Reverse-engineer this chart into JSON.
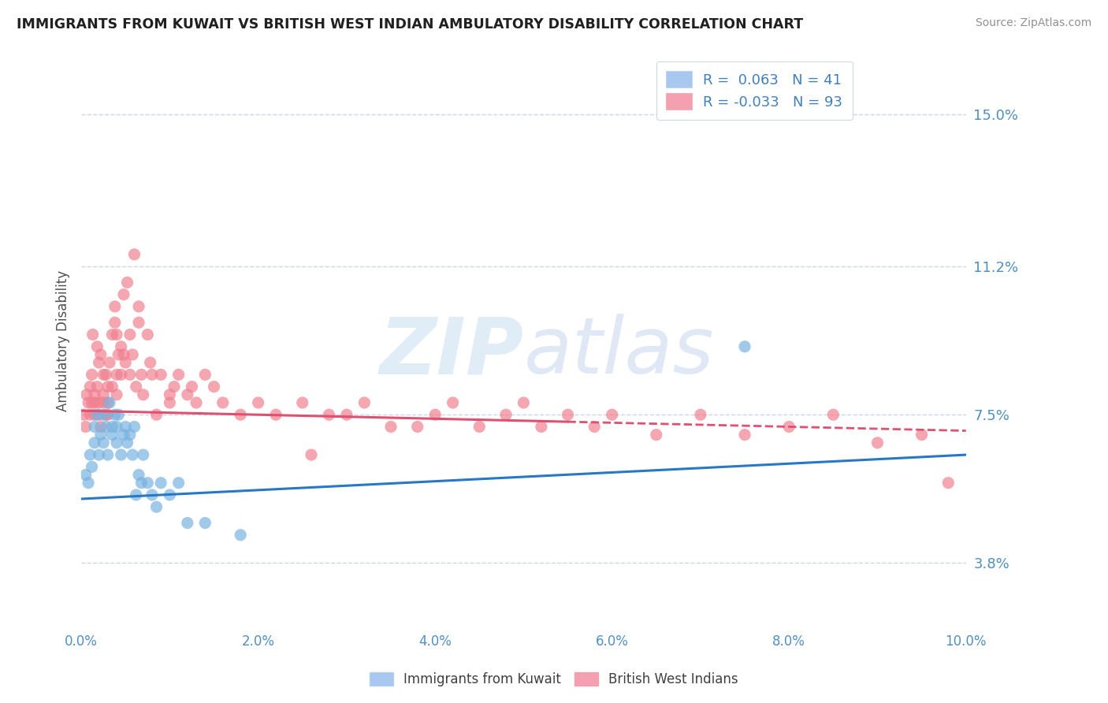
{
  "title": "IMMIGRANTS FROM KUWAIT VS BRITISH WEST INDIAN AMBULATORY DISABILITY CORRELATION CHART",
  "source": "Source: ZipAtlas.com",
  "ylabel": "Ambulatory Disability",
  "xlim": [
    0.0,
    10.0
  ],
  "ylim": [
    2.2,
    16.5
  ],
  "yticks": [
    3.8,
    7.5,
    11.2,
    15.0
  ],
  "ytick_labels": [
    "3.8%",
    "7.5%",
    "11.2%",
    "15.0%"
  ],
  "xticks": [
    0.0,
    2.0,
    4.0,
    6.0,
    8.0,
    10.0
  ],
  "xtick_labels": [
    "0.0%",
    "2.0%",
    "4.0%",
    "6.0%",
    "8.0%",
    "10.0%"
  ],
  "legend_entries": [
    {
      "label": "R =  0.063   N = 41",
      "color": "#a8c8f0"
    },
    {
      "label": "R = -0.033   N = 93",
      "color": "#f4a0b0"
    }
  ],
  "legend_bottom": [
    "Immigrants from Kuwait",
    "British West Indians"
  ],
  "kuwait_color": "#7ab3e0",
  "bwi_color": "#f08090",
  "watermark": "ZIPatlas",
  "background_color": "#ffffff",
  "grid_color": "#c8d8e8",
  "kuwait_trend_start_y": 5.4,
  "kuwait_trend_end_y": 6.5,
  "bwi_trend_start_y": 7.6,
  "bwi_trend_end_y": 7.1,
  "bwi_solid_end_x": 5.5,
  "kuwait_points_x": [
    0.05,
    0.08,
    0.1,
    0.12,
    0.15,
    0.15,
    0.18,
    0.2,
    0.22,
    0.25,
    0.25,
    0.28,
    0.3,
    0.32,
    0.35,
    0.35,
    0.38,
    0.4,
    0.4,
    0.42,
    0.45,
    0.48,
    0.5,
    0.52,
    0.55,
    0.58,
    0.6,
    0.62,
    0.65,
    0.68,
    0.7,
    0.75,
    0.8,
    0.85,
    0.9,
    1.0,
    1.1,
    1.2,
    1.4,
    1.8,
    7.5
  ],
  "kuwait_points_y": [
    6.0,
    5.8,
    6.5,
    6.2,
    6.8,
    7.2,
    7.5,
    6.5,
    7.0,
    6.8,
    7.5,
    7.2,
    6.5,
    7.8,
    7.0,
    7.2,
    7.5,
    6.8,
    7.2,
    7.5,
    6.5,
    7.0,
    7.2,
    6.8,
    7.0,
    6.5,
    7.2,
    5.5,
    6.0,
    5.8,
    6.5,
    5.8,
    5.5,
    5.2,
    5.8,
    5.5,
    5.8,
    4.8,
    4.8,
    4.5,
    9.2
  ],
  "bwi_points_x": [
    0.03,
    0.05,
    0.06,
    0.08,
    0.1,
    0.1,
    0.12,
    0.12,
    0.13,
    0.15,
    0.15,
    0.15,
    0.18,
    0.18,
    0.2,
    0.2,
    0.2,
    0.22,
    0.22,
    0.25,
    0.25,
    0.25,
    0.28,
    0.28,
    0.3,
    0.3,
    0.3,
    0.32,
    0.35,
    0.35,
    0.38,
    0.38,
    0.4,
    0.4,
    0.4,
    0.42,
    0.45,
    0.45,
    0.48,
    0.48,
    0.5,
    0.52,
    0.55,
    0.55,
    0.58,
    0.6,
    0.62,
    0.65,
    0.65,
    0.68,
    0.7,
    0.75,
    0.78,
    0.8,
    0.85,
    0.9,
    1.0,
    1.0,
    1.05,
    1.1,
    1.2,
    1.25,
    1.3,
    1.4,
    1.5,
    1.6,
    1.8,
    2.0,
    2.2,
    2.5,
    2.8,
    3.0,
    3.2,
    3.5,
    4.0,
    4.2,
    4.5,
    4.8,
    5.0,
    5.2,
    5.5,
    5.8,
    6.0,
    6.5,
    7.0,
    7.5,
    8.0,
    8.5,
    9.0,
    9.5,
    9.8,
    3.8,
    2.6
  ],
  "bwi_points_y": [
    7.5,
    7.2,
    8.0,
    7.8,
    8.2,
    7.5,
    8.5,
    7.8,
    9.5,
    8.0,
    7.8,
    7.5,
    8.2,
    9.2,
    7.5,
    7.8,
    8.8,
    7.2,
    9.0,
    8.5,
    7.8,
    8.0,
    7.5,
    8.5,
    7.8,
    8.2,
    7.5,
    8.8,
    9.5,
    8.2,
    10.2,
    9.8,
    9.5,
    8.5,
    8.0,
    9.0,
    9.2,
    8.5,
    10.5,
    9.0,
    8.8,
    10.8,
    9.5,
    8.5,
    9.0,
    11.5,
    8.2,
    9.8,
    10.2,
    8.5,
    8.0,
    9.5,
    8.8,
    8.5,
    7.5,
    8.5,
    8.0,
    7.8,
    8.2,
    8.5,
    8.0,
    8.2,
    7.8,
    8.5,
    8.2,
    7.8,
    7.5,
    7.8,
    7.5,
    7.8,
    7.5,
    7.5,
    7.8,
    7.2,
    7.5,
    7.8,
    7.2,
    7.5,
    7.8,
    7.2,
    7.5,
    7.2,
    7.5,
    7.0,
    7.5,
    7.0,
    7.2,
    7.5,
    6.8,
    7.0,
    5.8,
    7.2,
    6.5
  ]
}
